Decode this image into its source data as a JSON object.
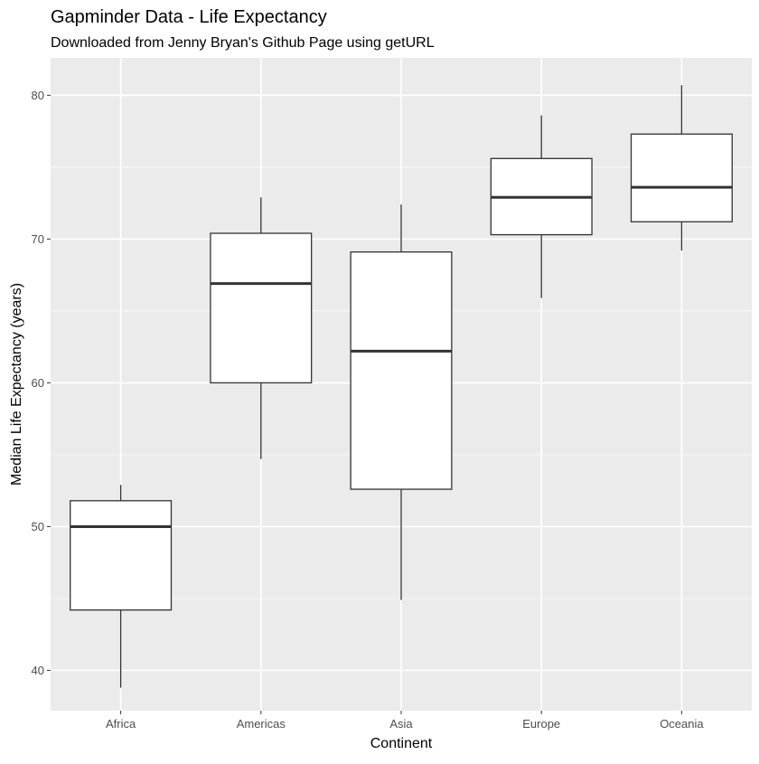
{
  "chart_data": {
    "type": "boxplot",
    "title": "Gapminder Data - Life Expectancy",
    "subtitle": "Downloaded from Jenny Bryan's Github Page using getURL",
    "xlabel": "Continent",
    "ylabel": "Median Life Expectancy (years)",
    "categories": [
      "Africa",
      "Americas",
      "Asia",
      "Europe",
      "Oceania"
    ],
    "boxes": [
      {
        "category": "Africa",
        "whisker_low": 38.8,
        "q1": 44.2,
        "median": 50.0,
        "q3": 51.8,
        "whisker_high": 52.9
      },
      {
        "category": "Americas",
        "whisker_low": 54.7,
        "q1": 60.0,
        "median": 66.9,
        "q3": 70.4,
        "whisker_high": 72.9
      },
      {
        "category": "Asia",
        "whisker_low": 44.9,
        "q1": 52.6,
        "median": 62.2,
        "q3": 69.1,
        "whisker_high": 72.4
      },
      {
        "category": "Europe",
        "whisker_low": 65.9,
        "q1": 70.3,
        "median": 72.9,
        "q3": 75.6,
        "whisker_high": 78.6
      },
      {
        "category": "Oceania",
        "whisker_low": 69.2,
        "q1": 71.2,
        "median": 73.6,
        "q3": 77.3,
        "whisker_high": 80.7
      }
    ],
    "y_ticks": [
      40,
      50,
      60,
      70,
      80
    ],
    "ylim": [
      37.2,
      82.6
    ],
    "grid": true,
    "legend": "none",
    "colors": {
      "panel_background": "#EBEBEB",
      "grid_major": "#FFFFFF",
      "box_fill": "#FFFFFF",
      "box_line": "#333333",
      "tick_text": "#4D4D4D"
    }
  }
}
